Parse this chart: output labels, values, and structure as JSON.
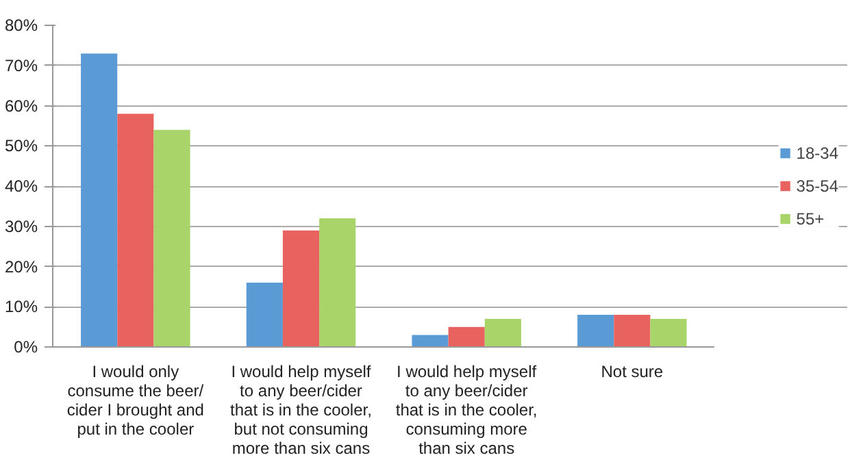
{
  "chart_data": {
    "type": "bar",
    "categories": [
      "I would only\nconsume the beer/\ncider I brought and\nput in the cooler",
      "I would help myself\nto any beer/cider\nthat is in the cooler,\nbut not consuming\nmore than six cans",
      "I would help myself\nto any beer/cider\nthat is in the cooler,\nconsuming more\nthan six cans",
      "Not sure"
    ],
    "series": [
      {
        "name": "18-34",
        "color": "#5b9bd5",
        "values": [
          73,
          16,
          3,
          8
        ]
      },
      {
        "name": "35-54",
        "color": "#e8625f",
        "values": [
          58,
          29,
          5,
          8
        ]
      },
      {
        "name": "55+",
        "color": "#a9d46a",
        "values": [
          54,
          32,
          7,
          7
        ]
      }
    ],
    "ylim": [
      0,
      80
    ],
    "yticks": [
      {
        "value": 0,
        "label": "0%"
      },
      {
        "value": 10,
        "label": "10%"
      },
      {
        "value": 20,
        "label": "20%"
      },
      {
        "value": 30,
        "label": "30%"
      },
      {
        "value": 40,
        "label": "40%"
      },
      {
        "value": 50,
        "label": "50%"
      },
      {
        "value": 60,
        "label": "60%"
      },
      {
        "value": 70,
        "label": "70%"
      },
      {
        "value": 80,
        "label": "80%"
      }
    ],
    "grid": "y",
    "legend": "right"
  }
}
